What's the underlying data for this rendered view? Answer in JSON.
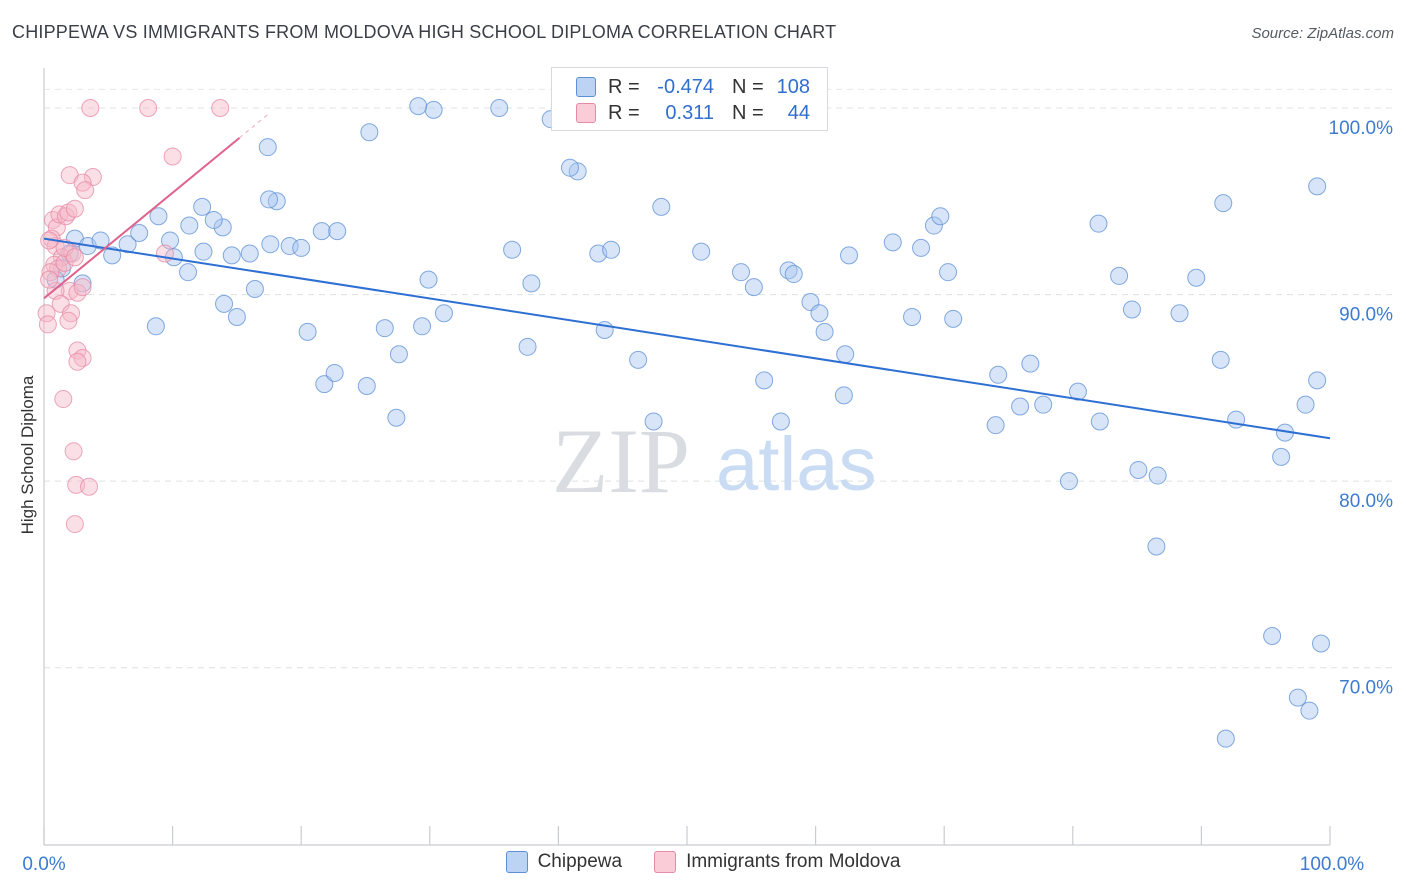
{
  "title": "CHIPPEWA VS IMMIGRANTS FROM MOLDOVA HIGH SCHOOL DIPLOMA CORRELATION CHART",
  "source": "Source: ZipAtlas.com",
  "watermark": {
    "zip": "ZIP",
    "atlas": "atlas"
  },
  "legend_top": [
    {
      "name": "Chippewa",
      "r_label": "R =",
      "r_value": "-0.474",
      "n_label": "N =",
      "n_value": "108",
      "color": "#a8c6f0",
      "stroke": "#5b8fd6"
    },
    {
      "name": "Immigrants from Moldova",
      "r_label": "R =",
      "r_value": "0.311",
      "n_label": "N =",
      "n_value": "44",
      "color": "#f6b8c8",
      "stroke": "#e68aa5"
    }
  ],
  "chart_data": {
    "type": "scatter",
    "title": "CHIPPEWA VS IMMIGRANTS FROM MOLDOVA HIGH SCHOOL DIPLOMA CORRELATION CHART",
    "xlabel": "",
    "ylabel": "High School Diploma",
    "xlim": [
      0,
      100
    ],
    "ylim": [
      60.5,
      101.5
    ],
    "x_tick_labels": [
      "0.0%",
      "100.0%"
    ],
    "y_ticks": [
      70,
      80,
      90,
      100
    ],
    "y_tick_labels": [
      "70.0%",
      "80.0%",
      "90.0%",
      "100.0%"
    ],
    "grid": true,
    "legend_position": "top-center",
    "series": [
      {
        "name": "Chippewa",
        "color": "#5b8fd6",
        "fill": "#a8c6f0",
        "trend": {
          "x": [
            0,
            100
          ],
          "y": [
            93.0,
            82.3
          ]
        },
        "points": [
          [
            2.4,
            93.0
          ],
          [
            3.4,
            92.6
          ],
          [
            2.0,
            92.2
          ],
          [
            5.3,
            92.1
          ],
          [
            4.4,
            92.9
          ],
          [
            6.5,
            92.7
          ],
          [
            7.4,
            93.3
          ],
          [
            8.9,
            94.2
          ],
          [
            9.8,
            92.9
          ],
          [
            11.3,
            93.7
          ],
          [
            10.1,
            92.0
          ],
          [
            12.3,
            94.7
          ],
          [
            13.9,
            93.6
          ],
          [
            13.2,
            94.0
          ],
          [
            14.6,
            92.1
          ],
          [
            12.4,
            92.3
          ],
          [
            16.0,
            92.2
          ],
          [
            18.1,
            95.0
          ],
          [
            17.5,
            95.1
          ],
          [
            17.6,
            92.7
          ],
          [
            19.1,
            92.6
          ],
          [
            20.0,
            92.5
          ],
          [
            21.6,
            93.4
          ],
          [
            22.8,
            93.4
          ],
          [
            1.4,
            91.4
          ],
          [
            0.9,
            90.8
          ],
          [
            3.0,
            90.6
          ],
          [
            8.7,
            88.3
          ],
          [
            11.2,
            91.2
          ],
          [
            14.0,
            89.5
          ],
          [
            15.0,
            88.8
          ],
          [
            16.4,
            90.3
          ],
          [
            17.4,
            97.9
          ],
          [
            20.5,
            88.0
          ],
          [
            25.3,
            98.7
          ],
          [
            30.3,
            99.9
          ],
          [
            29.1,
            100.1
          ],
          [
            25.1,
            85.1
          ],
          [
            21.8,
            85.2
          ],
          [
            22.6,
            85.8
          ],
          [
            26.5,
            88.2
          ],
          [
            29.9,
            90.8
          ],
          [
            31.1,
            89.0
          ],
          [
            27.6,
            86.8
          ],
          [
            27.4,
            83.4
          ],
          [
            35.4,
            100.0
          ],
          [
            39.4,
            99.4
          ],
          [
            29.4,
            88.3
          ],
          [
            36.4,
            92.4
          ],
          [
            37.9,
            90.6
          ],
          [
            37.6,
            87.2
          ],
          [
            41.5,
            96.6
          ],
          [
            43.1,
            92.2
          ],
          [
            43.6,
            88.1
          ],
          [
            44.1,
            92.4
          ],
          [
            46.2,
            86.5
          ],
          [
            47.4,
            83.2
          ],
          [
            40.9,
            96.8
          ],
          [
            48.0,
            94.7
          ],
          [
            51.1,
            92.3
          ],
          [
            54.2,
            91.2
          ],
          [
            55.2,
            90.4
          ],
          [
            56.0,
            85.4
          ],
          [
            57.9,
            91.3
          ],
          [
            59.6,
            89.6
          ],
          [
            57.3,
            83.2
          ],
          [
            58.3,
            91.1
          ],
          [
            60.7,
            88.0
          ],
          [
            62.3,
            86.8
          ],
          [
            60.3,
            89.0
          ],
          [
            62.2,
            84.6
          ],
          [
            62.6,
            92.1
          ],
          [
            69.2,
            93.7
          ],
          [
            66.0,
            92.8
          ],
          [
            68.2,
            92.5
          ],
          [
            70.3,
            91.2
          ],
          [
            69.7,
            94.2
          ],
          [
            70.7,
            88.7
          ],
          [
            67.5,
            88.8
          ],
          [
            74.2,
            85.7
          ],
          [
            74.0,
            83.0
          ],
          [
            75.9,
            84.0
          ],
          [
            76.7,
            86.3
          ],
          [
            77.7,
            84.1
          ],
          [
            82.0,
            93.8
          ],
          [
            79.7,
            80.0
          ],
          [
            80.4,
            84.8
          ],
          [
            82.1,
            83.2
          ],
          [
            83.6,
            91.0
          ],
          [
            84.6,
            89.2
          ],
          [
            85.1,
            80.6
          ],
          [
            86.6,
            80.3
          ],
          [
            86.5,
            76.5
          ],
          [
            88.3,
            89.0
          ],
          [
            91.5,
            86.5
          ],
          [
            91.7,
            94.9
          ],
          [
            89.6,
            90.9
          ],
          [
            92.7,
            83.3
          ],
          [
            96.2,
            81.3
          ],
          [
            96.5,
            82.6
          ],
          [
            98.1,
            84.1
          ],
          [
            99.0,
            85.4
          ],
          [
            99.0,
            95.8
          ],
          [
            98.4,
            67.7
          ],
          [
            99.3,
            71.3
          ],
          [
            95.5,
            71.7
          ],
          [
            91.9,
            66.2
          ],
          [
            97.5,
            68.4
          ]
        ]
      },
      {
        "name": "Immigrants from Moldova",
        "color": "#e68aa5",
        "fill": "#f6b8c8",
        "trend": {
          "x": [
            0,
            15.2
          ],
          "y": [
            89.8,
            98.4
          ]
        },
        "points": [
          [
            0.2,
            89.0
          ],
          [
            0.3,
            88.4
          ],
          [
            0.7,
            94.0
          ],
          [
            1.0,
            93.6
          ],
          [
            1.2,
            94.3
          ],
          [
            0.6,
            93.0
          ],
          [
            0.9,
            92.6
          ],
          [
            1.4,
            92.0
          ],
          [
            1.7,
            94.2
          ],
          [
            1.9,
            94.4
          ],
          [
            2.4,
            94.6
          ],
          [
            0.8,
            91.6
          ],
          [
            1.1,
            91.4
          ],
          [
            0.5,
            91.2
          ],
          [
            1.6,
            91.7
          ],
          [
            2.0,
            90.2
          ],
          [
            0.9,
            90.2
          ],
          [
            0.4,
            90.8
          ],
          [
            1.3,
            89.5
          ],
          [
            2.1,
            89.0
          ],
          [
            1.9,
            88.6
          ],
          [
            2.6,
            90.1
          ],
          [
            3.0,
            90.4
          ],
          [
            2.2,
            92.2
          ],
          [
            2.6,
            87.0
          ],
          [
            3.0,
            86.6
          ],
          [
            2.6,
            86.4
          ],
          [
            1.5,
            84.4
          ],
          [
            2.3,
            81.6
          ],
          [
            2.5,
            79.8
          ],
          [
            3.5,
            79.7
          ],
          [
            2.4,
            77.7
          ],
          [
            2.0,
            96.4
          ],
          [
            3.8,
            96.3
          ],
          [
            3.0,
            96.0
          ],
          [
            3.2,
            95.6
          ],
          [
            3.6,
            100.0
          ],
          [
            8.1,
            100.0
          ],
          [
            13.7,
            100.0
          ],
          [
            10.0,
            97.4
          ],
          [
            9.4,
            92.2
          ],
          [
            1.6,
            92.5
          ],
          [
            2.4,
            92.0
          ],
          [
            0.4,
            92.9
          ]
        ]
      }
    ]
  }
}
